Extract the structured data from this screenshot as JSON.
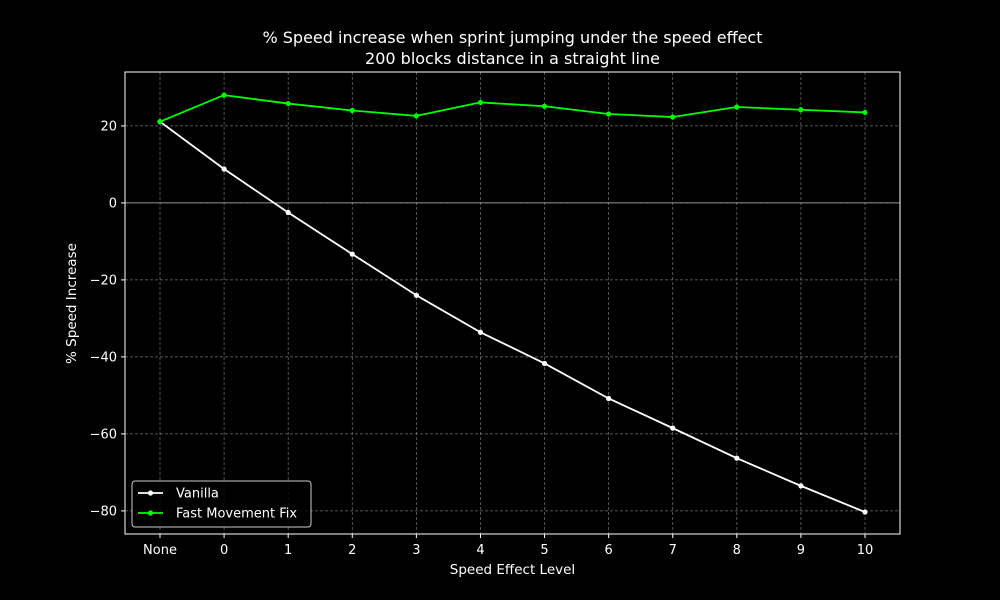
{
  "chart_data": {
    "type": "line",
    "title": "% Speed increase when sprint jumping under the speed effect",
    "subtitle": "200 blocks distance in a straight line",
    "xlabel": "Speed Effect Level",
    "ylabel": "% Speed Increase",
    "categories": [
      "None",
      "0",
      "1",
      "2",
      "3",
      "4",
      "5",
      "6",
      "7",
      "8",
      "9",
      "10"
    ],
    "ylim": [
      -86,
      34
    ],
    "yticks": [
      20,
      0,
      -20,
      -40,
      -60,
      -80
    ],
    "ytick_labels": [
      "20",
      "0",
      "−20",
      "−40",
      "−60",
      "−80"
    ],
    "grid": true,
    "legend_position": "lower-left",
    "zero_line": true,
    "series": [
      {
        "name": "Vanilla",
        "color": "#ffffff",
        "values": [
          21.1,
          8.8,
          -2.5,
          -13.3,
          -24.0,
          -33.6,
          -41.7,
          -50.8,
          -58.5,
          -66.3,
          -73.5,
          -80.3
        ]
      },
      {
        "name": "Fast Movement Fix",
        "color": "#00ff00",
        "values": [
          21.1,
          28.0,
          25.8,
          24.0,
          22.6,
          26.1,
          25.1,
          23.1,
          22.3,
          24.9,
          24.2,
          23.5
        ]
      }
    ]
  }
}
